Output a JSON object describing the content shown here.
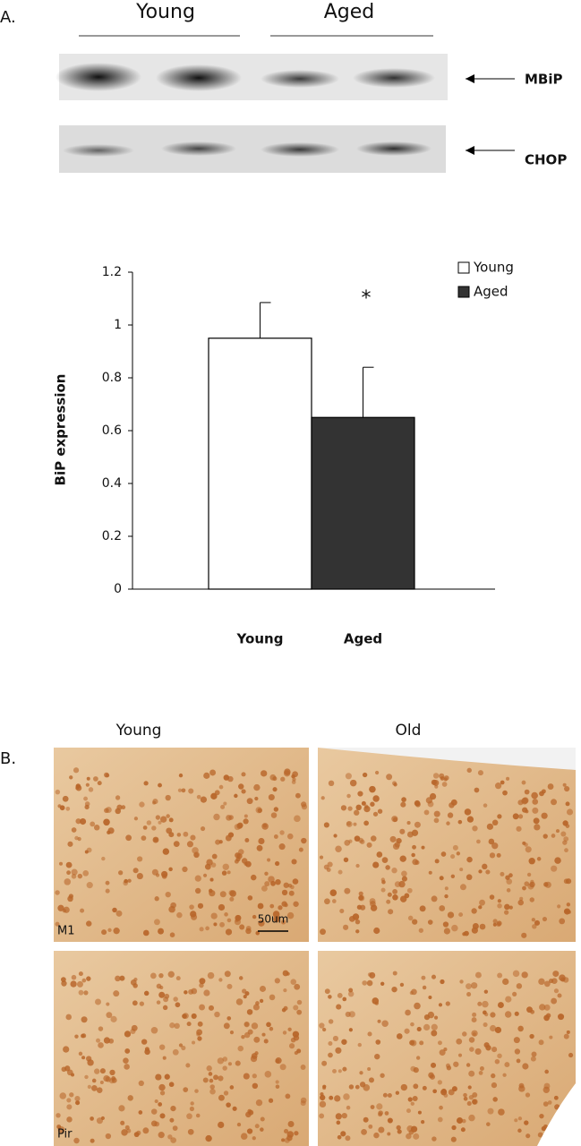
{
  "panel_a": {
    "label": "A.",
    "blot_columns": [
      "Young",
      "Aged"
    ],
    "bands": [
      "MBiP",
      "CHOP"
    ]
  },
  "chart_data": {
    "type": "bar",
    "y_label": "BiP expression",
    "categories": [
      "Young",
      "Aged"
    ],
    "series": [
      {
        "name": "Young",
        "color": "#ffffff",
        "values": [
          0.95,
          null
        ],
        "errors": [
          0.135,
          null
        ]
      },
      {
        "name": "Aged",
        "color": "#333333",
        "values": [
          null,
          0.65
        ],
        "errors": [
          null,
          0.19
        ]
      }
    ],
    "annotation": "*",
    "ylim": [
      0,
      1.2
    ],
    "yticks": [
      0,
      0.2,
      0.4,
      0.6,
      0.8,
      1,
      1.2
    ],
    "grid": false,
    "legend": "upper right"
  },
  "panel_b": {
    "label": "B.",
    "columns": [
      "Young",
      "Old"
    ],
    "rows": [
      "M1",
      "Pir"
    ],
    "scale_bar": "50um"
  }
}
